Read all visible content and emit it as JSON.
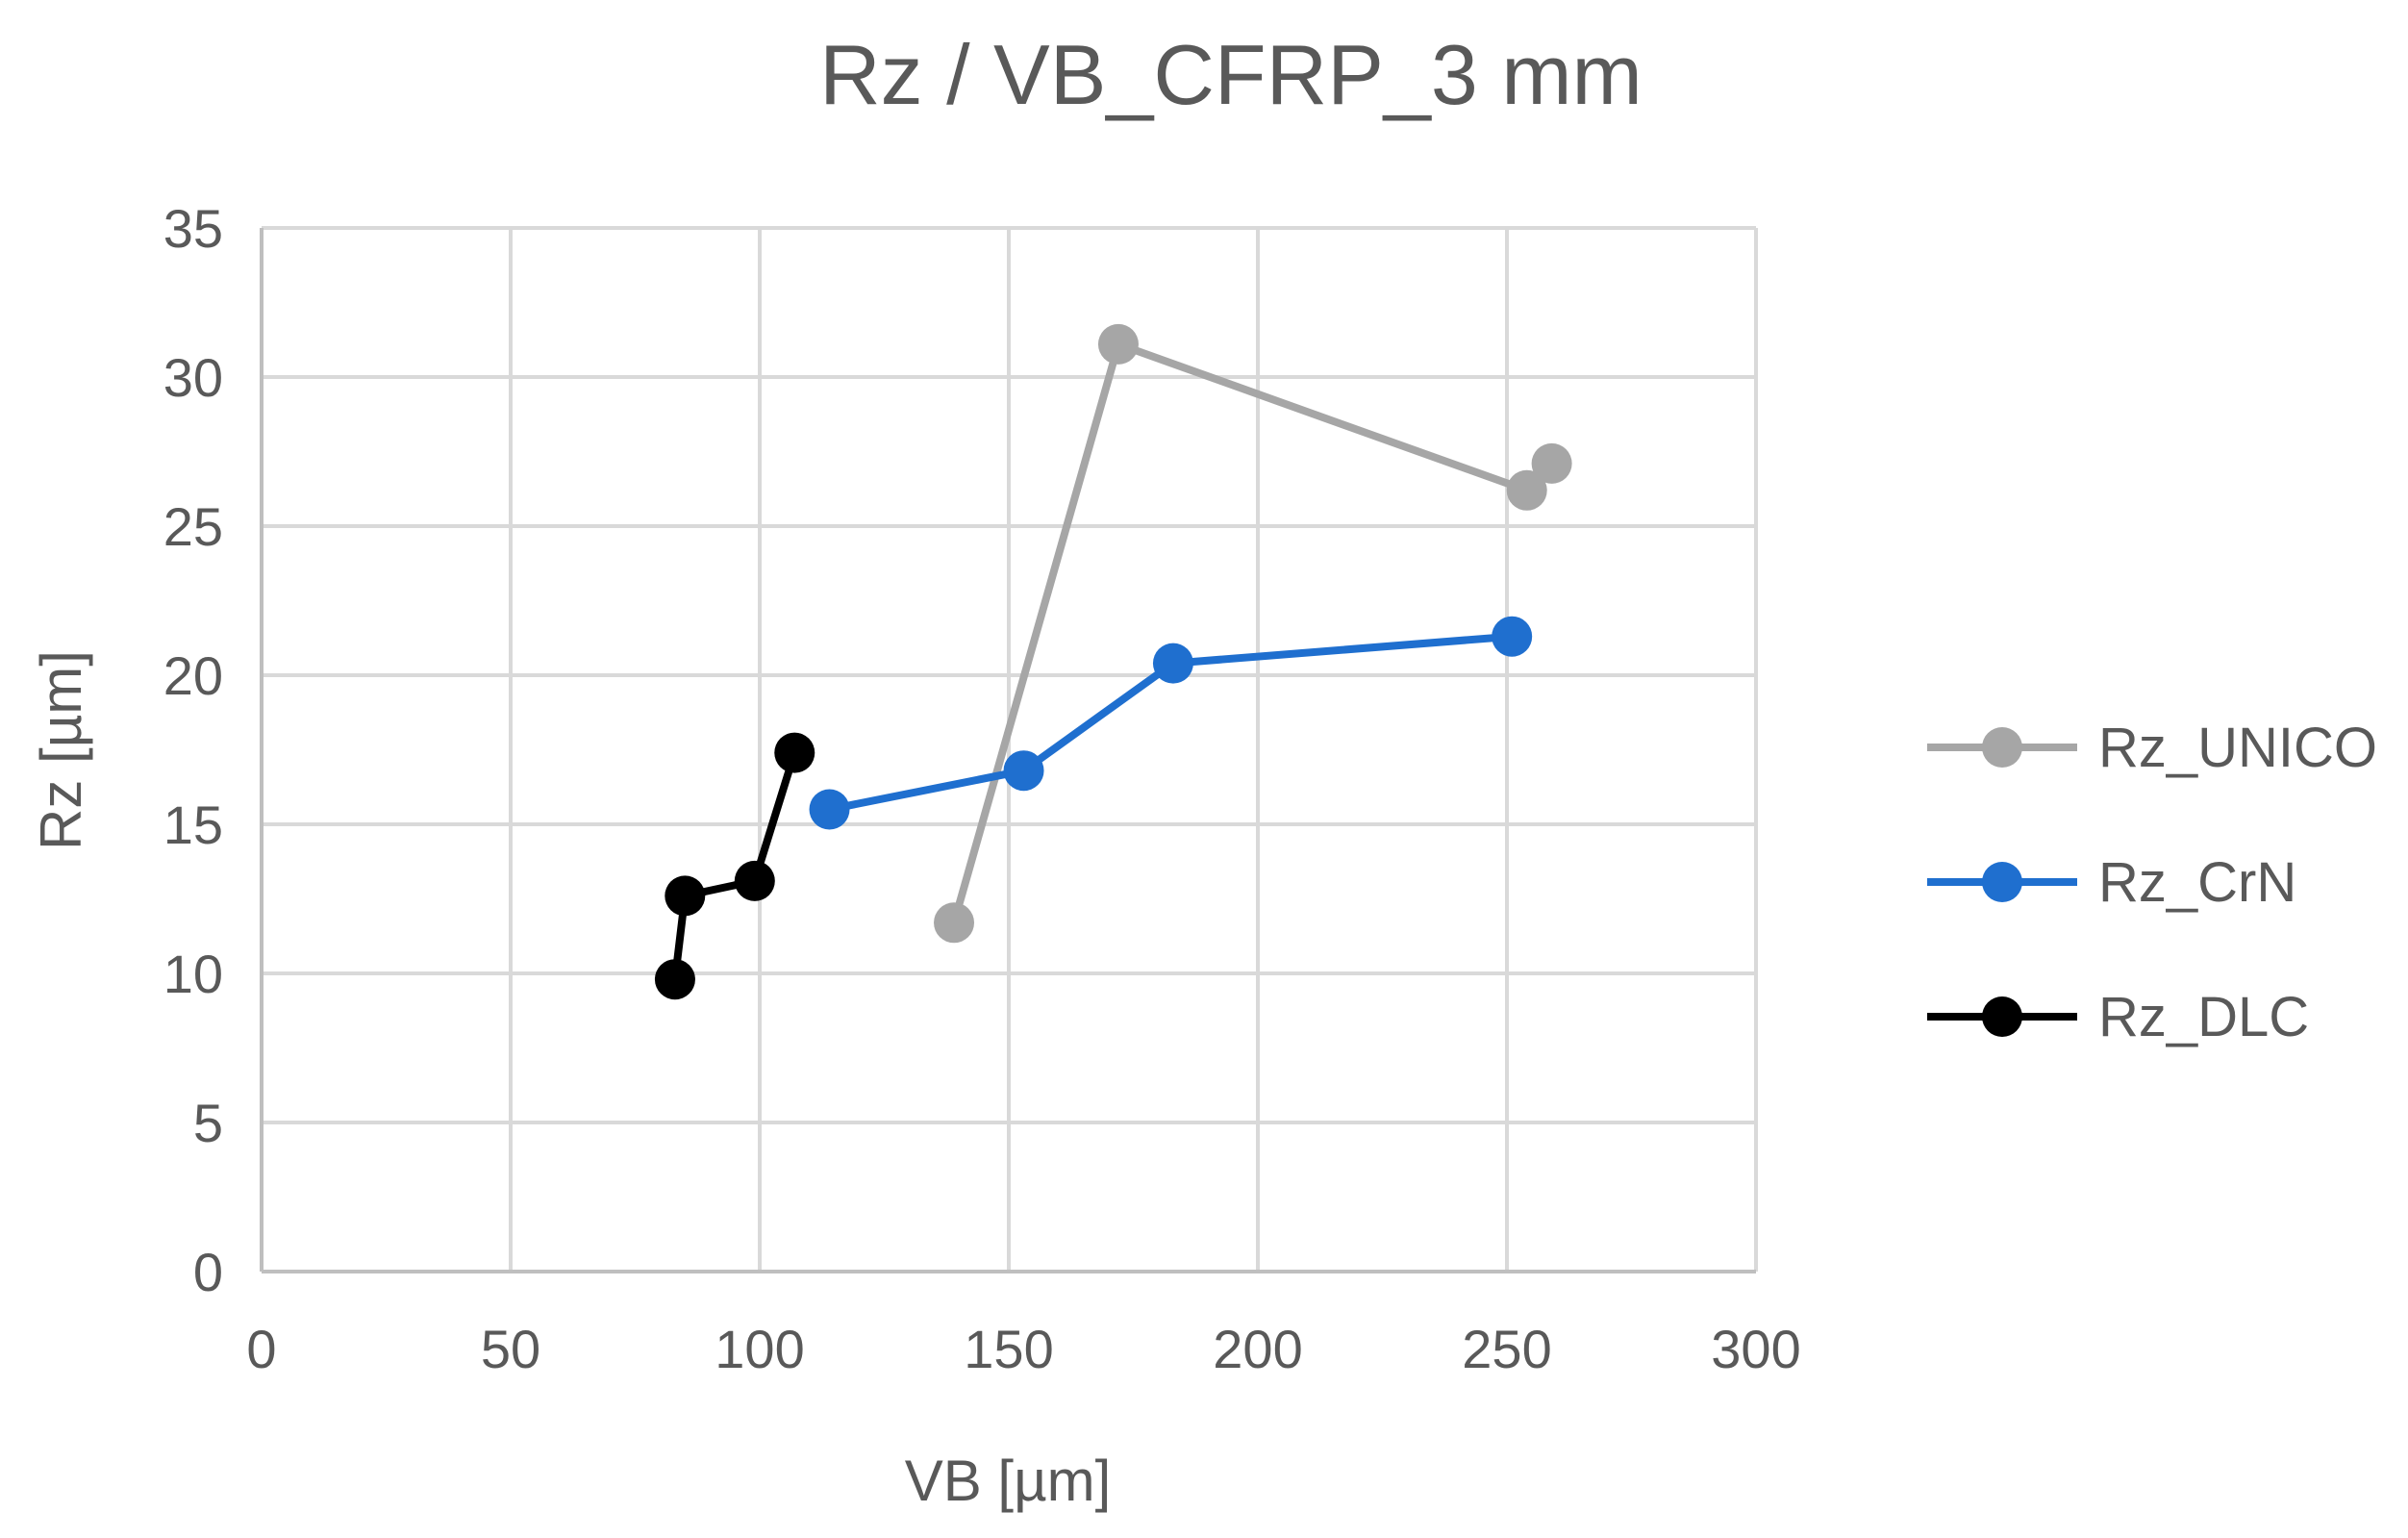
{
  "chart_data": {
    "type": "line",
    "title": "Rz / VB_CFRP_3  mm",
    "xlabel": "VB [µm]",
    "ylabel": "Rz [µm]",
    "xlim": [
      0,
      300
    ],
    "ylim": [
      0,
      35
    ],
    "x_ticks": [
      "0",
      "50",
      "100",
      "150",
      "200",
      "250",
      "300"
    ],
    "y_ticks": [
      "0",
      "5",
      "10",
      "15",
      "20",
      "25",
      "30",
      "35"
    ],
    "x_tick_values": [
      0,
      50,
      100,
      150,
      200,
      250,
      300
    ],
    "y_tick_values": [
      0,
      5,
      10,
      15,
      20,
      25,
      30,
      35
    ],
    "grid": true,
    "legend_position": "right",
    "series": [
      {
        "name": "Rz_UNICO",
        "color": "#a6a6a6",
        "points": [
          [
            139,
            11.7
          ],
          [
            172,
            31.1
          ],
          [
            254,
            26.2
          ],
          [
            259,
            27.1
          ]
        ]
      },
      {
        "name": "Rz_CrN",
        "color": "#1f6fcf",
        "points": [
          [
            114,
            15.5
          ],
          [
            153,
            16.8
          ],
          [
            183,
            20.4
          ],
          [
            251,
            21.3
          ]
        ]
      },
      {
        "name": "Rz_DLC",
        "color": "#000000",
        "points": [
          [
            83,
            9.8
          ],
          [
            85,
            12.6
          ],
          [
            99,
            13.1
          ],
          [
            107,
            17.4
          ]
        ]
      }
    ]
  }
}
